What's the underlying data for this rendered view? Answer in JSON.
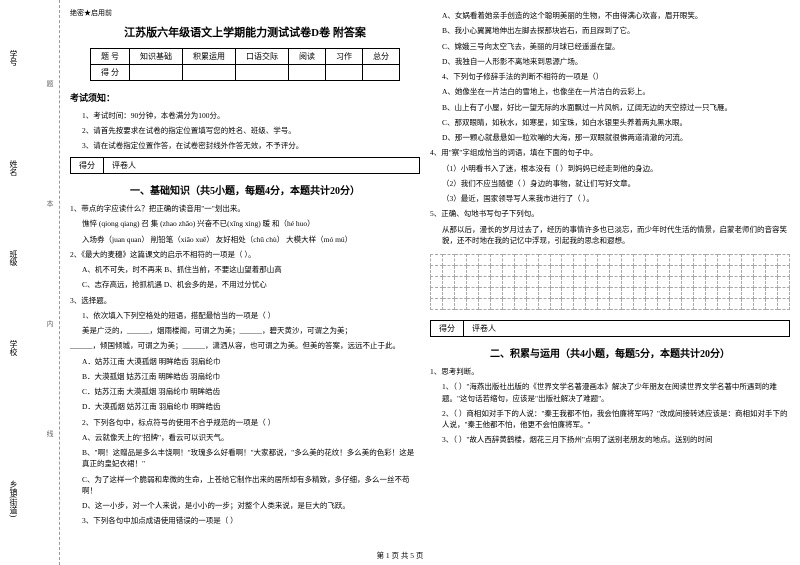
{
  "sidebar": {
    "xuehao": "学号",
    "xingming": "姓名",
    "banji": "班级",
    "xuexiao": "学校",
    "xiangzhen": "乡镇(街道)",
    "fold_chars": [
      "题",
      "本",
      "内",
      "线",
      "封"
    ]
  },
  "secret": "绝密★启用前",
  "title": "江苏版六年级语文上学期能力测试试卷D卷 附答案",
  "score_table": {
    "headers": [
      "题 号",
      "知识基础",
      "积累运用",
      "口语交际",
      "阅读",
      "习作",
      "总分"
    ],
    "row2": "得 分"
  },
  "notice": {
    "head": "考试须知：",
    "items": [
      "1、考试时间：90分钟，本卷满分为100分。",
      "2、请首先按要求在试卷的指定位置填写您的姓名、班级、学号。",
      "3、请在试卷指定位置作答，在试卷密封线外作答无效，不予评分。"
    ]
  },
  "rating": {
    "a": "得分",
    "b": "评卷人"
  },
  "sec1": {
    "title": "一、基础知识（共5小题，每题4分，本题共计20分）",
    "q1_stem": "1、带点的字应读什么？把正确的读音用\"一\"划出来。",
    "q1_line1": "憔悴 (qiong qiang)    召 集 (zhao zhāo)    兴奋不已(xīng xìng)    暖 和（hé huo）",
    "q1_line2": "入场券（juan quan）   削铅笔（xiāo xuē）   友好相处（chǔ chù）    大模大样（mó mú）",
    "q2_stem": "2、《最大的麦穗》这篇课文的启示不相符的一项是（    ）。",
    "q2_a": "A、机不可失，时不再来    B、抓住当前，不要这山望着那山高",
    "q2_b": "C、志存高远，抢抓机遇    D、机会多的是，不用过分忧心",
    "q3_stem": "3、选择题。",
    "q3_sub1": "1、依次填入下列空格处的短语，搭配最恰当的一项是（   ）",
    "q3_line1": "美是广泛的，______，烟雨楼阁，可谓之为美；______，碧天黄沙，可谓之为美；",
    "q3_line2": "______，倾国倾城，可谓之为美；______，潇洒从容，也可谓之为美。但美的答案，远远不止于此。",
    "q3_a": "A．姑苏江南   大漠孤烟   明眸皓齿    羽扇纶巾",
    "q3_b": "B．大漠孤烟   姑苏江南   明眸皓齿    羽扇纶巾",
    "q3_c": "C．姑苏江南   大漠孤烟   羽扇纶巾    明眸皓齿",
    "q3_d": "D．大漠孤烟   姑苏江南   羽扇纶巾    明眸皓齿",
    "q3_sub2": "2、下列各句中，标点符号的使用不合乎规范的一项是（   ）",
    "q3_2a": "A、云就像天上的\"招牌\"，看云可以识天气。",
    "q3_2b": "B、\"啊！这赠品是多么丰饶啊！\"玫瑰多么好看啊！\"大家都说，\"多么美的花纹！多么美的色彩！这是真正的皇妃衣裙！\"",
    "q3_2c": "C、为了这样一个脆弱和卑微的生命，上苍给它制作出来的居所却有多精致，多仔细，多么一丝不苟啊！",
    "q3_2d": "D、这一小步，对一个人来说，是小小的一步；对整个人类来说，是巨大的飞跃。",
    "q3_sub3": "3、下列各句中加点成语使用错误的一项是（   ）"
  },
  "right": {
    "r1": "A、女娲看着她亲手创造的这个聪明美丽的生物，不由得满心欢喜，眉开眼笑。",
    "r2": "B、我小心翼翼地伸出左脚去探那块岩石，而且踩到了它。",
    "r3": "C、嫦娥三号向太空飞去，美丽的月球已经遥遥在望。",
    "r4": "D、我独自一人形影不离地来到思源广场。",
    "q4_stem": "4、下列句子修辞手法的判断不相符的一项是（）",
    "r4a": "A、她像坐在一片洁白的雪地上，也像坐在一片洁白的云彩上。",
    "r4b": "B、山上有了小屋，好比一望无际的水面飘过一片风帆，辽阔无边的天空掠过一只飞雁。",
    "r4c": "C、那双眼睛，如秋水，如寒星，如宝珠，如白水银里头养着两丸黑水眼。",
    "r4d": "D、那一颗心就悬悬如一粒欢嘣的大海，那一双眼就很佛两道清澈的河流。",
    "q5_stem": "4、用\"察\"字组成恰当的词语，填在下面的句子中。",
    "r5a": "（1）小明看书入了迷，根本没有（    ）到妈妈已经走到他的身边。",
    "r5b": "（2）我们不应当随便（    ）身边的事物，就让们写好文章。",
    "r5c": "（3）最近，国家领导写人来我市进行了（    ）。",
    "q6_stem": "5、正确、勾地书写句子下列句。",
    "q6_text": "从那以后，漫长的岁月过去了，经历的事情许多也已淡忘，而少年时代生活的情景，启蒙老师们的音容笑貌，还不时地在我的记忆中浮现，引起我的思念和遐想。"
  },
  "sec2": {
    "title": "二、积累与运用（共4小题，每题5分，本题共计20分）",
    "q1_stem": "1、思考判断。",
    "q1a": "1、（    ）\"海燕出版社出版的《世界文学名著漫画本》解决了少年朋友在阅读世界文学名著中所遇到的难题。\"这句话若缩句，应该是\"出版社解决了难题\"。",
    "q1b": "2、（    ）商相如对手下的人说：\"秦王我都不怕，我会怕廉将军吗？\"改成间接转述应该是：商相如对手下的人说，\"秦王他都不怕，他更不会怕廉将军。\"",
    "q1c": "3、（    ）\"故人西辞黄鹤楼，烟花三月下扬州\"点明了送别老朋友的地点。送别的时间"
  },
  "footer": "第 1 页 共 5 页",
  "grid": {
    "rows": 5,
    "cols": 30
  }
}
